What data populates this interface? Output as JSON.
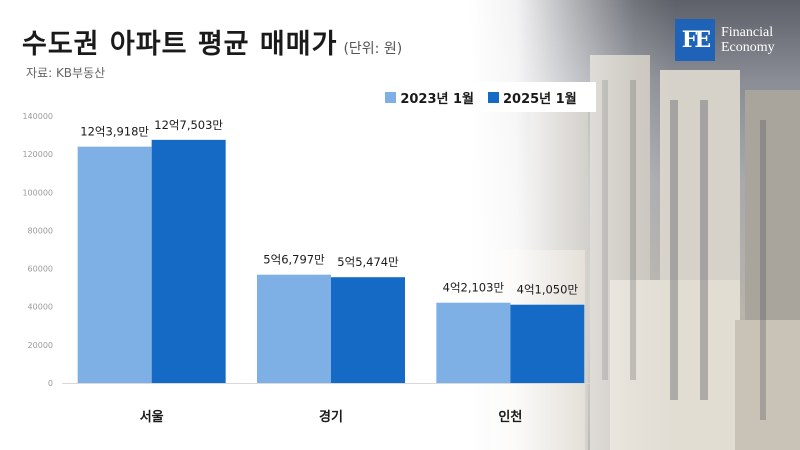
{
  "header": {
    "title": "수도권 아파트 평균 매매가",
    "unit": "(단위: 원)",
    "source": "자료: KB부동산"
  },
  "logo": {
    "mark": "FE",
    "line1": "Financial",
    "line2": "Economy"
  },
  "colors": {
    "series_2023": "#7fb0e5",
    "series_2025": "#156ac6",
    "brand": "#1e63b8"
  },
  "chart_data": {
    "type": "bar",
    "categories": [
      "서울",
      "경기",
      "인천"
    ],
    "series": [
      {
        "name": "2023년 1월",
        "values": [
          123918,
          56797,
          42103
        ],
        "labels": [
          "12억3,918만",
          "5억6,797만",
          "4억2,103만"
        ]
      },
      {
        "name": "2025년 1월",
        "values": [
          127503,
          55474,
          41050
        ],
        "labels": [
          "12억7,503만",
          "5억5,474만",
          "4억1,050만"
        ]
      }
    ],
    "ylim": [
      0,
      140000
    ],
    "yticks": [
      0,
      20000,
      40000,
      60000,
      80000,
      100000,
      120000,
      140000
    ],
    "grid": false,
    "legend_position": "top-right"
  }
}
